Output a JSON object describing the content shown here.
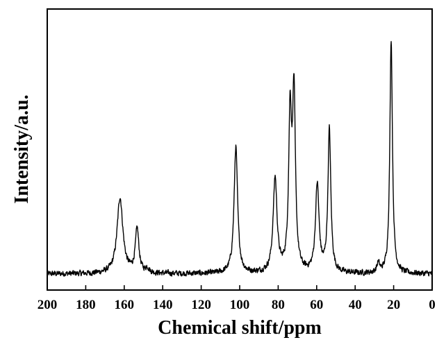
{
  "chart_data": {
    "type": "line",
    "title": "",
    "xlabel": "Chemical shift/ppm",
    "ylabel": "Intensity/a.u.",
    "xlim": [
      200,
      0
    ],
    "x_reversed": true,
    "ylim": [
      -0.07,
      1.15
    ],
    "y_ticks_shown": false,
    "grid": false,
    "legend": "none",
    "x_ticks": [
      200,
      180,
      160,
      140,
      120,
      100,
      80,
      60,
      40,
      20,
      0
    ],
    "x_tick_labels": [
      "200",
      "180",
      "160",
      "140",
      "120",
      "100",
      "80",
      "60",
      "40",
      "20",
      "0"
    ],
    "series": [
      {
        "color": "#000000",
        "baseline": 0.0,
        "peaks": [
          {
            "x": 162.2,
            "height": 0.33,
            "width": 1.8
          },
          {
            "x": 153.3,
            "height": 0.19,
            "width": 1.1
          },
          {
            "x": 148.0,
            "height": 0.02,
            "width": 1.0
          },
          {
            "x": 102.0,
            "height": 0.55,
            "width": 1.1
          },
          {
            "x": 81.6,
            "height": 0.41,
            "width": 1.2
          },
          {
            "x": 73.8,
            "height": 0.66,
            "width": 0.9
          },
          {
            "x": 71.8,
            "height": 0.75,
            "width": 0.9
          },
          {
            "x": 59.7,
            "height": 0.38,
            "width": 1.1
          },
          {
            "x": 53.4,
            "height": 0.62,
            "width": 0.9
          },
          {
            "x": 28.0,
            "height": 0.04,
            "width": 0.8
          },
          {
            "x": 21.3,
            "height": 1.02,
            "width": 0.8
          }
        ]
      }
    ]
  }
}
